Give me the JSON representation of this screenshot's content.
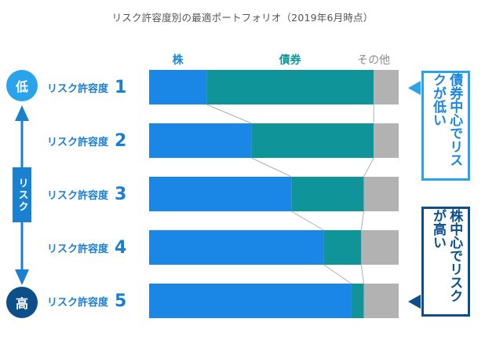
{
  "title": "リスク許容度別の最適ポートフォリオ（2019年6月時点）",
  "headers": [
    "株",
    "債券",
    "その他"
  ],
  "risk_axis": {
    "low": "低",
    "high": "高",
    "label": "リスク"
  },
  "callouts": {
    "low": "債券中心でリスクが低い",
    "high": "株中心でリスクが高い"
  },
  "colors": {
    "stock": "#1a86e6",
    "bond": "#0f9499",
    "other": "#b2b2b2",
    "low": "#29a3ec",
    "high": "#0c4f8a"
  },
  "chart_data": {
    "type": "bar",
    "orientation": "horizontal",
    "stacked": true,
    "categories": [
      {
        "label": "リスク許容度",
        "num": "1"
      },
      {
        "label": "リスク許容度",
        "num": "2"
      },
      {
        "label": "リスク許容度",
        "num": "3"
      },
      {
        "label": "リスク許容度",
        "num": "4"
      },
      {
        "label": "リスク許容度",
        "num": "5"
      }
    ],
    "series": [
      {
        "name": "株",
        "values": [
          23,
          41,
          57,
          70,
          81
        ]
      },
      {
        "name": "債券",
        "values": [
          67,
          49,
          29,
          15,
          5
        ]
      },
      {
        "name": "その他",
        "values": [
          10,
          10,
          14,
          15,
          14
        ]
      }
    ],
    "xlim": [
      0,
      100
    ]
  }
}
